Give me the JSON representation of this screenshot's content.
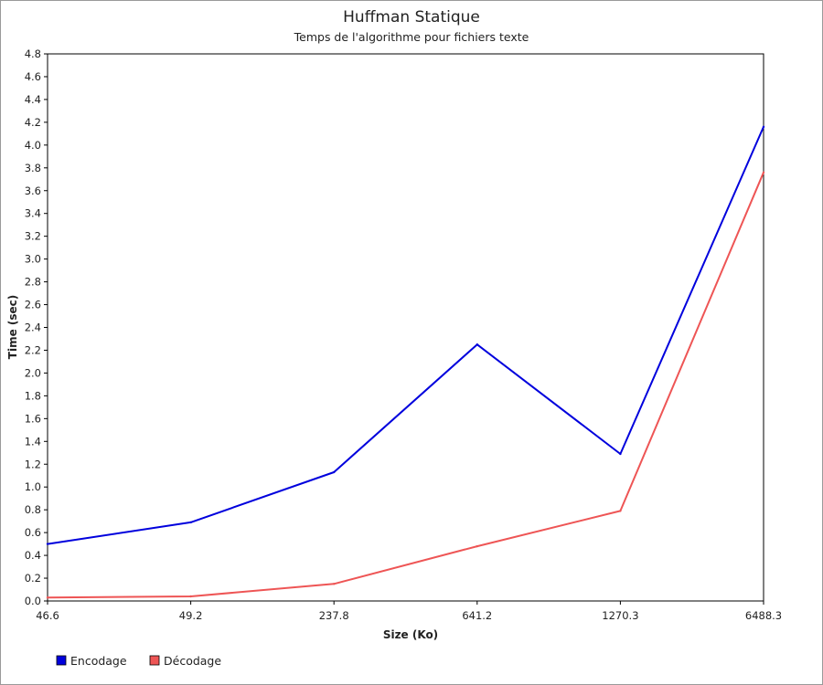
{
  "chart_data": {
    "type": "line",
    "title": "Huffman Statique",
    "subtitle": "Temps de l'algorithme pour fichiers texte",
    "xlabel": "Size (Ko)",
    "ylabel": "Time (sec)",
    "categories": [
      "46.6",
      "49.2",
      "237.8",
      "641.2",
      "1270.3",
      "6488.3"
    ],
    "ylim": [
      0,
      4.8
    ],
    "yticks": [
      "0.0",
      "0.2",
      "0.4",
      "0.6",
      "0.8",
      "1.0",
      "1.2",
      "1.4",
      "1.6",
      "1.8",
      "2.0",
      "2.2",
      "2.4",
      "2.6",
      "2.8",
      "3.0",
      "3.2",
      "3.4",
      "3.6",
      "3.8",
      "4.0",
      "4.2",
      "4.4",
      "4.6",
      "4.8"
    ],
    "grid": false,
    "legend_position": "bottom-left",
    "series": [
      {
        "name": "Encodage",
        "color": "#0000dd",
        "values": [
          0.5,
          0.69,
          1.13,
          2.25,
          1.29,
          4.16
        ]
      },
      {
        "name": "Décodage",
        "color": "#ee5555",
        "values": [
          0.03,
          0.04,
          0.15,
          0.48,
          0.79,
          3.76
        ]
      }
    ]
  }
}
